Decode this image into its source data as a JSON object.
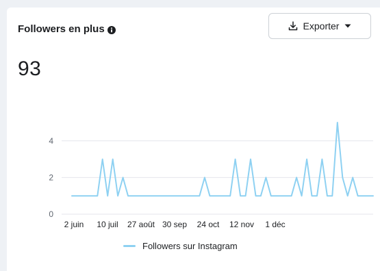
{
  "card": {
    "title": "Followers en plus",
    "info_icon": "info-icon",
    "total": "93"
  },
  "toolbar": {
    "export_label": "Exporter",
    "export_icon": "download-icon",
    "dropdown_icon": "caret-down-icon"
  },
  "colors": {
    "series": "#8ed1f2",
    "grid": "#e4e6eb",
    "text": "#1c1e21",
    "muted": "#606770"
  },
  "chart_data": {
    "type": "line",
    "x_ticks": [
      "2 juin",
      "10 juil",
      "27 août",
      "30 sep",
      "24 oct",
      "12 nov",
      "1 déc"
    ],
    "y_ticks": [
      "0",
      "2",
      "4"
    ],
    "ylim": [
      0,
      5
    ],
    "grid": true,
    "legend_position": "bottom",
    "series": [
      {
        "name": "Followers sur Instagram",
        "values": [
          1,
          1,
          1,
          1,
          1,
          1,
          3,
          1,
          3,
          1,
          2,
          1,
          1,
          1,
          1,
          1,
          1,
          1,
          1,
          1,
          1,
          1,
          1,
          1,
          1,
          1,
          2,
          1,
          1,
          1,
          1,
          1,
          3,
          1,
          1,
          3,
          1,
          1,
          2,
          1,
          1,
          1,
          1,
          1,
          2,
          1,
          3,
          1,
          1,
          3,
          1,
          1,
          5,
          2,
          1,
          2,
          1,
          1,
          1,
          1
        ]
      }
    ]
  }
}
